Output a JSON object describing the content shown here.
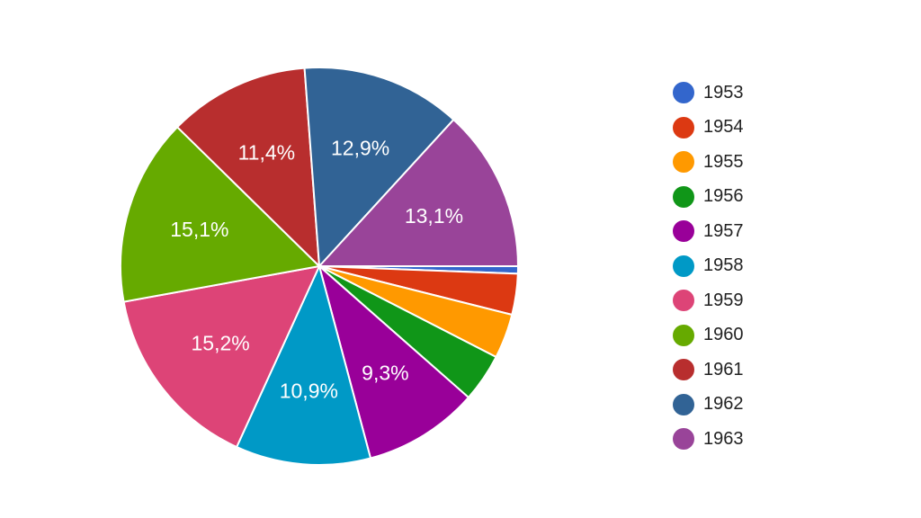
{
  "chart_data": {
    "type": "pie",
    "categories": [
      "1953",
      "1954",
      "1955",
      "1956",
      "1957",
      "1958",
      "1959",
      "1960",
      "1961",
      "1962",
      "1963"
    ],
    "values": [
      0.6,
      3.3,
      3.6,
      3.9,
      9.3,
      10.9,
      15.2,
      15.1,
      11.4,
      12.9,
      13.1
    ],
    "data_labels": [
      "",
      "",
      "",
      "",
      "9,3%",
      "10,9%",
      "15,2%",
      "15,1%",
      "11,4%",
      "12,9%",
      "13,1%"
    ],
    "colors": [
      "#3366cc",
      "#dc3912",
      "#ff9900",
      "#109618",
      "#990099",
      "#0099c6",
      "#dd4477",
      "#66aa00",
      "#b82e2e",
      "#316395",
      "#994499"
    ],
    "start_direction": "right, clockwise",
    "legend_position": "right"
  }
}
